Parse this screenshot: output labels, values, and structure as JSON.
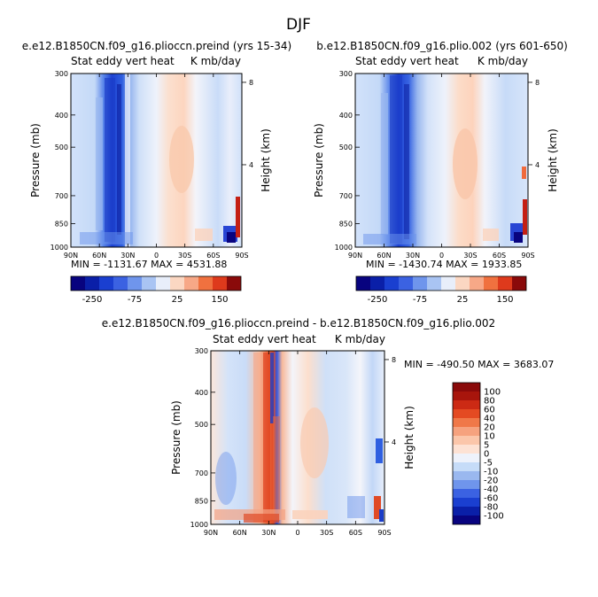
{
  "page_title": "DJF",
  "colors": {
    "deep_blue": "#08037f",
    "mid_blue": "#2f5fe0",
    "light_blue": "#c6dcf8",
    "white": "#f4f6fb",
    "light_red": "#fbd9c4",
    "mid_red": "#f06a3c",
    "deep_red": "#8a0a0a"
  },
  "chart_data": [
    {
      "type": "heatmap",
      "title": "e.e12.B1850CN.f09_g16.plioccn.preind (yrs 15-34)",
      "left_subtitle": "Stat eddy vert heat",
      "right_subtitle": "K mb/day",
      "xlabel": "",
      "ylabel": "Pressure (mb)",
      "y2label": "Height (km)",
      "x_ticks": [
        "90N",
        "60N",
        "30N",
        "0",
        "30S",
        "60S",
        "90S"
      ],
      "y_ticks": [
        300,
        400,
        500,
        700,
        850,
        1000
      ],
      "y2_ticks": [
        8,
        4
      ],
      "ylim": [
        1000,
        300
      ],
      "log_scale_y": true,
      "stats": "MIN = -1131.67   MAX = 4531.88",
      "colorbar_labels": [
        "-250",
        "-75",
        "25",
        "150"
      ]
    },
    {
      "type": "heatmap",
      "title": "b.e12.B1850CN.f09_g16.plio.002 (yrs 601-650)",
      "left_subtitle": "Stat eddy vert heat",
      "right_subtitle": "K mb/day",
      "xlabel": "",
      "ylabel": "Pressure (mb)",
      "y2label": "Height (km)",
      "x_ticks": [
        "90N",
        "60N",
        "30N",
        "0",
        "30S",
        "60S",
        "90S"
      ],
      "y_ticks": [
        300,
        400,
        500,
        700,
        850,
        1000
      ],
      "y2_ticks": [
        8,
        4
      ],
      "ylim": [
        1000,
        300
      ],
      "log_scale_y": true,
      "stats": "MIN = -1430.74   MAX = 1933.85",
      "colorbar_labels": [
        "-250",
        "-75",
        "25",
        "150"
      ]
    },
    {
      "type": "heatmap",
      "title": "e.e12.B1850CN.f09_g16.plioccn.preind - b.e12.B1850CN.f09_g16.plio.002",
      "left_subtitle": "Stat eddy vert heat",
      "right_subtitle": "K mb/day",
      "xlabel": "",
      "ylabel": "Pressure (mb)",
      "y2label": "Height (km)",
      "x_ticks": [
        "90N",
        "60N",
        "30N",
        "0",
        "30S",
        "60S",
        "90S"
      ],
      "y_ticks": [
        300,
        400,
        500,
        700,
        850,
        1000
      ],
      "y2_ticks": [
        8,
        4
      ],
      "ylim": [
        1000,
        300
      ],
      "log_scale_y": true,
      "stats": "MIN = -490.50   MAX = 3683.07",
      "colorbar_labels": [
        "100",
        "80",
        "60",
        "40",
        "20",
        "10",
        "5",
        "0",
        "-5",
        "-10",
        "-20",
        "-40",
        "-60",
        "-80",
        "-100"
      ]
    }
  ]
}
